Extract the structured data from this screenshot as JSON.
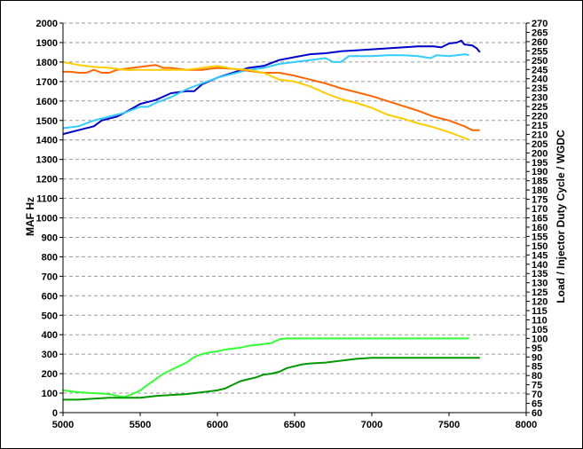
{
  "chart_data": {
    "type": "line",
    "xlabel": "",
    "ylabel_left": "MAF Hz",
    "ylabel_right": "Load / Injector Duty Cycle / WGDC",
    "xlim": [
      5000,
      8000
    ],
    "x_ticks": [
      5000,
      5500,
      6000,
      6500,
      7000,
      7500,
      8000
    ],
    "ylim_left": [
      0,
      2000
    ],
    "y_ticks_left": [
      0,
      100,
      200,
      300,
      400,
      500,
      600,
      700,
      800,
      900,
      1000,
      1100,
      1200,
      1300,
      1400,
      1500,
      1600,
      1700,
      1800,
      1900,
      2000
    ],
    "ylim_right": [
      60,
      270
    ],
    "y_ticks_right": [
      60,
      65,
      70,
      75,
      80,
      85,
      90,
      95,
      100,
      105,
      110,
      115,
      120,
      125,
      130,
      135,
      140,
      145,
      150,
      155,
      160,
      165,
      170,
      175,
      180,
      185,
      190,
      195,
      200,
      205,
      210,
      215,
      220,
      225,
      230,
      235,
      240,
      245,
      250,
      255,
      260,
      265,
      270
    ],
    "grid": "horizontal dashed",
    "legend": "none",
    "series": [
      {
        "axis": "left",
        "color": "#0000cc",
        "x": [
          5000,
          5100,
          5200,
          5250,
          5350,
          5400,
          5500,
          5600,
          5700,
          5800,
          5850,
          5900,
          6000,
          6100,
          6200,
          6300,
          6400,
          6500,
          6600,
          6700,
          6800,
          6900,
          7000,
          7100,
          7200,
          7300,
          7400,
          7450,
          7500,
          7550,
          7580,
          7600,
          7650,
          7680,
          7700
        ],
        "y": [
          1430,
          1450,
          1470,
          1500,
          1520,
          1540,
          1585,
          1605,
          1640,
          1650,
          1650,
          1685,
          1720,
          1745,
          1770,
          1780,
          1810,
          1825,
          1840,
          1845,
          1855,
          1860,
          1865,
          1870,
          1875,
          1880,
          1880,
          1875,
          1895,
          1900,
          1910,
          1890,
          1885,
          1870,
          1850
        ]
      },
      {
        "axis": "left",
        "color": "#33ccff",
        "x": [
          5000,
          5100,
          5200,
          5300,
          5400,
          5500,
          5550,
          5600,
          5700,
          5800,
          5900,
          6000,
          6100,
          6200,
          6300,
          6400,
          6500,
          6600,
          6700,
          6750,
          6800,
          6850,
          6900,
          7000,
          7100,
          7200,
          7300,
          7380,
          7420,
          7500,
          7550,
          7600,
          7630
        ],
        "y": [
          1460,
          1470,
          1500,
          1520,
          1540,
          1570,
          1570,
          1590,
          1620,
          1660,
          1690,
          1720,
          1740,
          1760,
          1770,
          1790,
          1800,
          1810,
          1820,
          1800,
          1800,
          1830,
          1830,
          1830,
          1835,
          1835,
          1830,
          1820,
          1835,
          1830,
          1835,
          1840,
          1835
        ]
      },
      {
        "axis": "left",
        "color": "#ff6600",
        "x": [
          5000,
          5050,
          5100,
          5150,
          5200,
          5250,
          5300,
          5350,
          5400,
          5450,
          5500,
          5550,
          5600,
          5650,
          5700,
          5800,
          5900,
          6000,
          6100,
          6200,
          6300,
          6400,
          6500,
          6600,
          6700,
          6800,
          6900,
          7000,
          7100,
          7200,
          7300,
          7400,
          7500,
          7600,
          7650,
          7700
        ],
        "y": [
          1750,
          1750,
          1745,
          1745,
          1760,
          1745,
          1745,
          1760,
          1765,
          1770,
          1775,
          1780,
          1785,
          1770,
          1770,
          1760,
          1760,
          1770,
          1765,
          1755,
          1745,
          1745,
          1730,
          1710,
          1690,
          1665,
          1645,
          1625,
          1600,
          1575,
          1550,
          1520,
          1500,
          1470,
          1450,
          1450
        ]
      },
      {
        "axis": "left",
        "color": "#ffcc00",
        "x": [
          5000,
          5100,
          5200,
          5300,
          5400,
          5500,
          5600,
          5700,
          5800,
          5900,
          6000,
          6100,
          6200,
          6300,
          6400,
          6500,
          6600,
          6700,
          6800,
          6900,
          7000,
          7100,
          7200,
          7300,
          7400,
          7500,
          7550,
          7600,
          7630
        ],
        "y": [
          1800,
          1785,
          1775,
          1770,
          1760,
          1760,
          1760,
          1760,
          1760,
          1770,
          1780,
          1765,
          1760,
          1745,
          1710,
          1700,
          1675,
          1640,
          1610,
          1590,
          1565,
          1530,
          1510,
          1485,
          1465,
          1440,
          1425,
          1410,
          1400
        ]
      },
      {
        "axis": "right",
        "color": "#33ff33",
        "x": [
          5000,
          5100,
          5200,
          5300,
          5350,
          5400,
          5450,
          5500,
          5550,
          5600,
          5650,
          5700,
          5750,
          5800,
          5850,
          5900,
          5950,
          6000,
          6050,
          6100,
          6150,
          6200,
          6250,
          6300,
          6350,
          6400,
          6450,
          6500,
          7000,
          7500,
          7630
        ],
        "y": [
          72,
          71,
          70.5,
          70,
          69,
          68.5,
          70,
          72,
          75,
          78,
          81,
          83,
          85,
          87,
          90,
          91.5,
          92.5,
          93,
          94,
          94.5,
          95,
          96,
          96.5,
          97,
          97.5,
          99.5,
          100,
          100,
          100,
          100,
          100
        ]
      },
      {
        "axis": "right",
        "color": "#009900",
        "x": [
          5000,
          5100,
          5200,
          5300,
          5400,
          5500,
          5600,
          5700,
          5800,
          5900,
          5950,
          6000,
          6050,
          6100,
          6150,
          6200,
          6250,
          6300,
          6350,
          6400,
          6450,
          6500,
          6550,
          6600,
          6700,
          6800,
          6900,
          7000,
          7100,
          7200,
          7500,
          7700
        ],
        "y": [
          67,
          67,
          67.5,
          68,
          68,
          68,
          69,
          69.5,
          70,
          71,
          71.5,
          72,
          73,
          75,
          77,
          78,
          79,
          80.5,
          81,
          82,
          84,
          85,
          86,
          86.5,
          87,
          88,
          89,
          89.5,
          89.5,
          89.5,
          89.5,
          89.5
        ]
      }
    ]
  }
}
